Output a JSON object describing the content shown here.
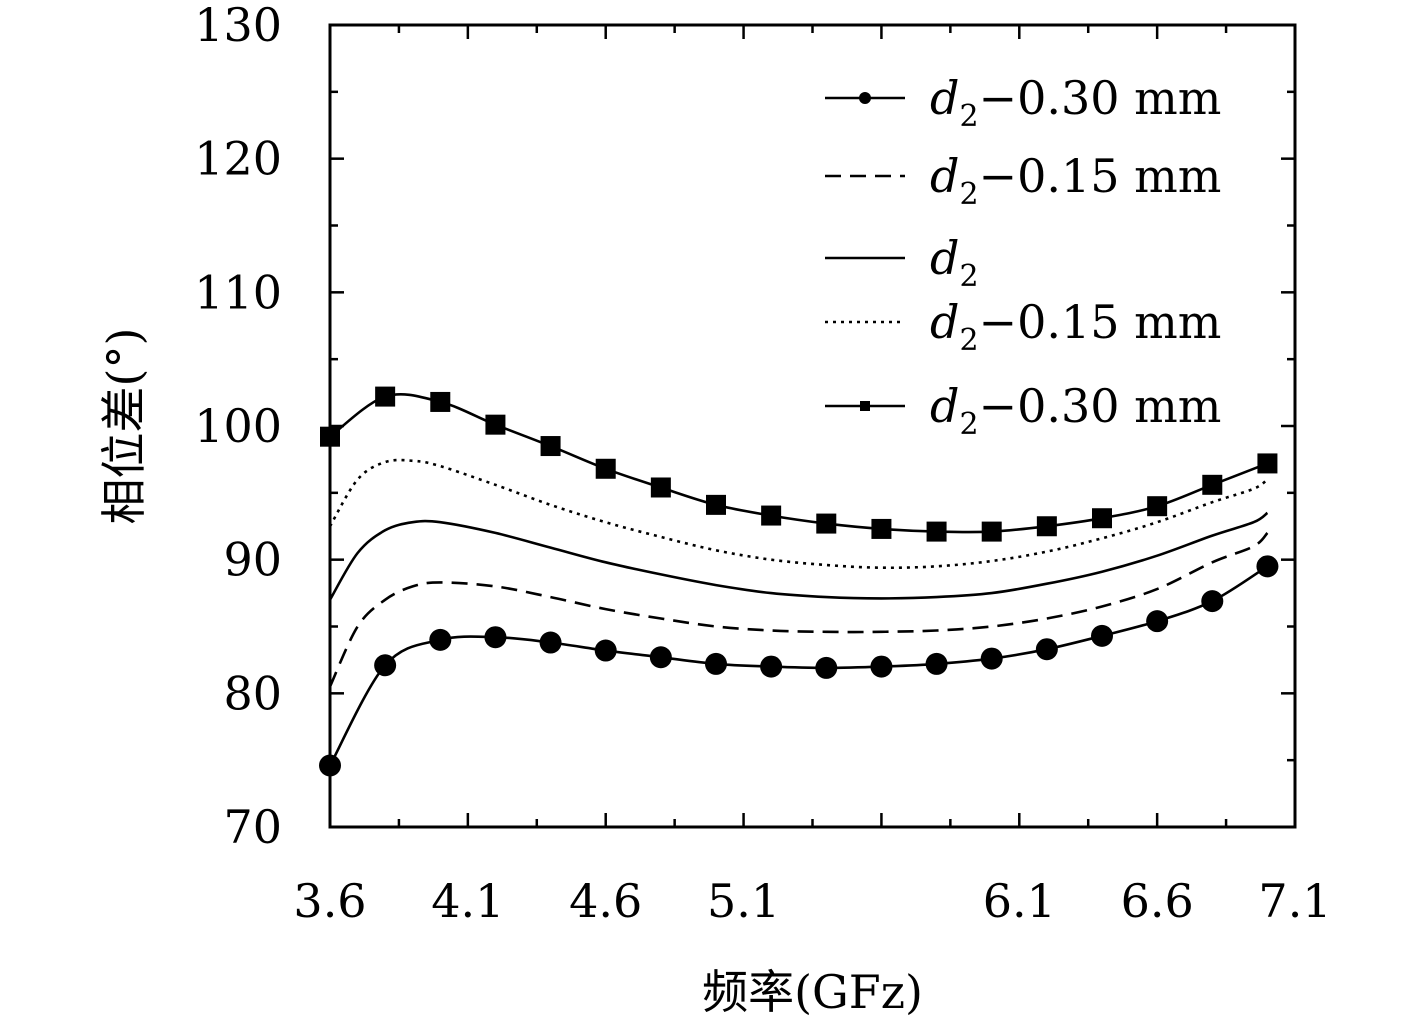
{
  "chart_data": {
    "type": "line",
    "title": "",
    "xlabel": "频率(GFz)",
    "ylabel": "相位差(°)",
    "xlim": [
      3.6,
      7.1
    ],
    "ylim": [
      70,
      130
    ],
    "xticks": [
      3.6,
      4.1,
      4.6,
      5.1,
      6.1,
      6.6,
      7.1
    ],
    "xtick_labels": [
      "3.6",
      "4.1",
      "4.6",
      "5.1",
      "6.1",
      "6.6",
      "7.1"
    ],
    "yticks": [
      70,
      80,
      90,
      100,
      110,
      120,
      130
    ],
    "ytick_labels": [
      "70",
      "80",
      "90",
      "100",
      "110",
      "120",
      "130"
    ],
    "grid": false,
    "legend_position": "top-right",
    "series": [
      {
        "name": "d2−0.30 mm",
        "legend_var": "d",
        "legend_sub": "2",
        "legend_suffix": "−0.30 mm",
        "style": "solid-circle",
        "x": [
          3.6,
          3.8,
          4.0,
          4.2,
          4.4,
          4.6,
          4.8,
          5.0,
          5.2,
          5.4,
          5.6,
          5.8,
          6.0,
          6.2,
          6.4,
          6.6,
          6.8,
          7.0
        ],
        "y": [
          74.6,
          82.1,
          84.0,
          84.2,
          83.8,
          83.2,
          82.7,
          82.2,
          82.0,
          81.9,
          82.0,
          82.2,
          82.6,
          83.3,
          84.3,
          85.4,
          86.9,
          89.5
        ]
      },
      {
        "name": "d2−0.15 mm",
        "legend_var": "d",
        "legend_sub": "2",
        "legend_suffix": "−0.15 mm",
        "style": "dashed",
        "x": [
          3.6,
          3.7,
          3.8,
          3.9,
          4.0,
          4.2,
          4.4,
          4.6,
          4.8,
          5.0,
          5.2,
          5.4,
          5.6,
          5.8,
          6.0,
          6.2,
          6.4,
          6.6,
          6.8,
          6.95,
          7.0
        ],
        "y": [
          80.5,
          85.0,
          87.0,
          88.0,
          88.3,
          88.0,
          87.2,
          86.3,
          85.6,
          85.0,
          84.7,
          84.6,
          84.6,
          84.7,
          85.0,
          85.6,
          86.5,
          87.8,
          89.8,
          91.0,
          92.0
        ]
      },
      {
        "name": "d2",
        "legend_var": "d",
        "legend_sub": "2",
        "legend_suffix": "",
        "style": "solid",
        "x": [
          3.6,
          3.7,
          3.8,
          3.9,
          4.0,
          4.2,
          4.4,
          4.6,
          4.8,
          5.0,
          5.2,
          5.4,
          5.6,
          5.8,
          6.0,
          6.2,
          6.4,
          6.6,
          6.8,
          6.95,
          7.0
        ],
        "y": [
          87.0,
          90.5,
          92.2,
          92.8,
          92.8,
          92.0,
          90.9,
          89.8,
          88.9,
          88.1,
          87.5,
          87.2,
          87.1,
          87.2,
          87.5,
          88.2,
          89.1,
          90.3,
          91.8,
          92.8,
          93.5
        ]
      },
      {
        "name": "d2−0.15 mm",
        "legend_var": "d",
        "legend_sub": "2",
        "legend_suffix": "−0.15 mm",
        "style": "dotted",
        "x": [
          3.6,
          3.7,
          3.8,
          3.9,
          4.0,
          4.2,
          4.4,
          4.6,
          4.8,
          5.0,
          5.2,
          5.4,
          5.6,
          5.8,
          6.0,
          6.2,
          6.4,
          6.6,
          6.8,
          6.95,
          7.0
        ],
        "y": [
          92.5,
          96.0,
          97.3,
          97.4,
          97.0,
          95.6,
          94.1,
          92.8,
          91.7,
          90.7,
          90.0,
          89.6,
          89.4,
          89.5,
          89.9,
          90.6,
          91.6,
          92.8,
          94.3,
          95.3,
          96.0
        ]
      },
      {
        "name": "d2−0.30 mm",
        "legend_var": "d",
        "legend_sub": "2",
        "legend_suffix": "−0.30 mm",
        "style": "solid-square",
        "x": [
          3.6,
          3.8,
          4.0,
          4.2,
          4.4,
          4.6,
          4.8,
          5.0,
          5.2,
          5.4,
          5.6,
          5.8,
          6.0,
          6.2,
          6.4,
          6.6,
          6.8,
          7.0
        ],
        "y": [
          99.2,
          102.2,
          101.8,
          100.1,
          98.5,
          96.8,
          95.4,
          94.1,
          93.3,
          92.7,
          92.3,
          92.1,
          92.1,
          92.5,
          93.1,
          94.0,
          95.6,
          97.2
        ]
      }
    ]
  }
}
